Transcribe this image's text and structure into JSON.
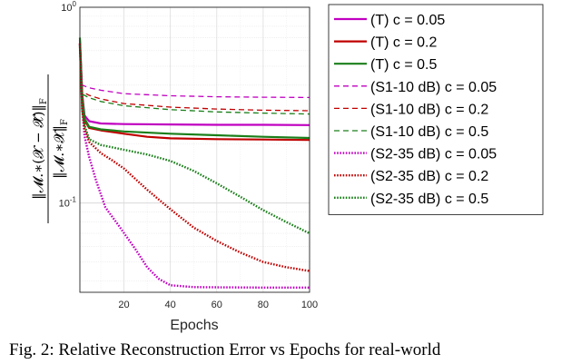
{
  "caption": "Fig. 2: Relative Reconstruction Error vs Epochs for real-world",
  "chart_data": {
    "type": "line",
    "title": "",
    "xlabel": "Epochs",
    "ylabel_numerator": "‖𝓜.∗(𝓧 − 𝓧̂)‖",
    "ylabel_denominator": "‖𝓜.∗𝓧‖",
    "ylabel_subscript": "F",
    "xlim": [
      1,
      100
    ],
    "ylim": [
      0.035,
      1.0
    ],
    "yscale": "log",
    "grid": true,
    "legend_position": "outside-right",
    "x_ticks": [
      20,
      40,
      60,
      80,
      100
    ],
    "y_ticks": [
      {
        "value": 0.1,
        "base": "10",
        "exp": "-1"
      },
      {
        "value": 1.0,
        "base": "10",
        "exp": "0"
      }
    ],
    "series": [
      {
        "name": "(T) c = 0.05",
        "color": "#c000c0",
        "style": "solid",
        "width": 2.2,
        "points": [
          [
            1,
            0.68
          ],
          [
            2,
            0.36
          ],
          [
            3,
            0.28
          ],
          [
            5,
            0.262
          ],
          [
            10,
            0.255
          ],
          [
            20,
            0.253
          ],
          [
            40,
            0.252
          ],
          [
            60,
            0.251
          ],
          [
            80,
            0.251
          ],
          [
            100,
            0.25
          ]
        ]
      },
      {
        "name": "(T) c = 0.2",
        "color": "#c00000",
        "style": "solid",
        "width": 2.2,
        "points": [
          [
            1,
            0.66
          ],
          [
            2,
            0.34
          ],
          [
            3,
            0.265
          ],
          [
            5,
            0.242
          ],
          [
            10,
            0.235
          ],
          [
            20,
            0.226
          ],
          [
            30,
            0.218
          ],
          [
            40,
            0.214
          ],
          [
            60,
            0.212
          ],
          [
            80,
            0.211
          ],
          [
            100,
            0.21
          ]
        ]
      },
      {
        "name": "(T) c = 0.5",
        "color": "#1a7f1a",
        "style": "solid",
        "width": 2.2,
        "points": [
          [
            1,
            0.7
          ],
          [
            2,
            0.35
          ],
          [
            3,
            0.27
          ],
          [
            5,
            0.245
          ],
          [
            10,
            0.238
          ],
          [
            20,
            0.232
          ],
          [
            40,
            0.226
          ],
          [
            60,
            0.222
          ],
          [
            80,
            0.218
          ],
          [
            100,
            0.215
          ]
        ]
      },
      {
        "name": "(S1-10 dB) c = 0.05",
        "color": "#c000c0",
        "style": "dashed",
        "width": 1.3,
        "points": [
          [
            1,
            0.62
          ],
          [
            2,
            0.4
          ],
          [
            5,
            0.388
          ],
          [
            10,
            0.377
          ],
          [
            20,
            0.362
          ],
          [
            40,
            0.353
          ],
          [
            60,
            0.349
          ],
          [
            80,
            0.347
          ],
          [
            100,
            0.346
          ]
        ]
      },
      {
        "name": "(S1-10 dB) c = 0.2",
        "color": "#c00000",
        "style": "dashed",
        "width": 1.3,
        "points": [
          [
            1,
            0.6
          ],
          [
            2,
            0.37
          ],
          [
            5,
            0.355
          ],
          [
            10,
            0.34
          ],
          [
            20,
            0.322
          ],
          [
            40,
            0.309
          ],
          [
            60,
            0.302
          ],
          [
            80,
            0.298
          ],
          [
            100,
            0.296
          ]
        ]
      },
      {
        "name": "(S1-10 dB) c = 0.5",
        "color": "#1a7f1a",
        "style": "dashed",
        "width": 1.3,
        "points": [
          [
            1,
            0.61
          ],
          [
            2,
            0.36
          ],
          [
            5,
            0.345
          ],
          [
            10,
            0.33
          ],
          [
            20,
            0.314
          ],
          [
            40,
            0.3
          ],
          [
            60,
            0.292
          ],
          [
            80,
            0.288
          ],
          [
            100,
            0.285
          ]
        ]
      },
      {
        "name": "(S2-35 dB) c = 0.05",
        "color": "#c000c0",
        "style": "dotted",
        "width": 2.4,
        "points": [
          [
            1,
            0.65
          ],
          [
            2,
            0.3
          ],
          [
            3,
            0.22
          ],
          [
            5,
            0.172
          ],
          [
            8,
            0.13
          ],
          [
            12,
            0.095
          ],
          [
            18,
            0.076
          ],
          [
            25,
            0.058
          ],
          [
            30,
            0.047
          ],
          [
            35,
            0.041
          ],
          [
            40,
            0.038
          ],
          [
            50,
            0.0372
          ],
          [
            60,
            0.0371
          ],
          [
            80,
            0.037
          ],
          [
            100,
            0.037
          ]
        ]
      },
      {
        "name": "(S2-35 dB) c = 0.2",
        "color": "#c00000",
        "style": "dotted",
        "width": 2.4,
        "points": [
          [
            1,
            0.65
          ],
          [
            2,
            0.3
          ],
          [
            3,
            0.24
          ],
          [
            5,
            0.205
          ],
          [
            10,
            0.18
          ],
          [
            15,
            0.165
          ],
          [
            20,
            0.15
          ],
          [
            30,
            0.117
          ],
          [
            40,
            0.093
          ],
          [
            50,
            0.075
          ],
          [
            60,
            0.064
          ],
          [
            70,
            0.056
          ],
          [
            80,
            0.05
          ],
          [
            90,
            0.047
          ],
          [
            100,
            0.045
          ]
        ]
      },
      {
        "name": "(S2-35 dB) c = 0.5",
        "color": "#1a7f1a",
        "style": "dotted",
        "width": 2.4,
        "points": [
          [
            1,
            0.64
          ],
          [
            2,
            0.3
          ],
          [
            3,
            0.25
          ],
          [
            5,
            0.212
          ],
          [
            10,
            0.198
          ],
          [
            20,
            0.187
          ],
          [
            30,
            0.177
          ],
          [
            40,
            0.164
          ],
          [
            50,
            0.146
          ],
          [
            60,
            0.126
          ],
          [
            70,
            0.108
          ],
          [
            80,
            0.092
          ],
          [
            90,
            0.08
          ],
          [
            100,
            0.07
          ]
        ]
      }
    ]
  }
}
